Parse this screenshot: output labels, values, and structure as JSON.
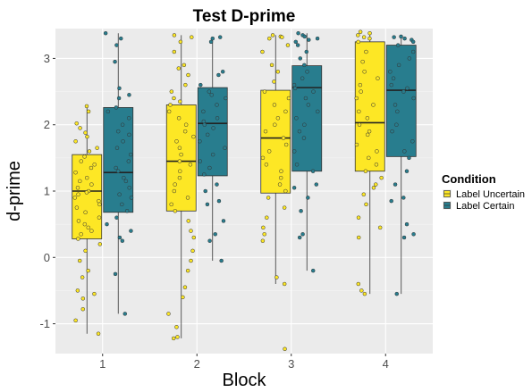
{
  "chart_data": {
    "type": "box",
    "title": "Test D-prime",
    "xlabel": "Block",
    "ylabel": "d-prime",
    "categories": [
      "1",
      "2",
      "3",
      "4"
    ],
    "ylim": [
      -1.45,
      3.45
    ],
    "yticks": [
      -1,
      0,
      1,
      2,
      3
    ],
    "grid": true,
    "legend": {
      "title": "Condition",
      "position": "right"
    },
    "series": [
      {
        "name": "Label Uncertain",
        "color": "#FDE725",
        "boxes": [
          {
            "min": -1.15,
            "q1": 0.28,
            "median": 1.0,
            "q3": 1.55,
            "max": 2.3
          },
          {
            "min": -1.22,
            "q1": 0.7,
            "median": 1.45,
            "q3": 2.3,
            "max": 3.35
          },
          {
            "min": -0.4,
            "q1": 0.97,
            "median": 1.8,
            "q3": 2.52,
            "max": 3.35
          },
          {
            "min": -0.55,
            "q1": 1.3,
            "median": 2.03,
            "q3": 3.25,
            "max": 3.4
          }
        ],
        "points": [
          [
            2.28,
            2.2,
            2.02,
            1.95,
            1.88,
            1.82,
            1.75,
            1.65,
            1.6,
            1.52,
            1.45,
            1.4,
            1.35,
            1.28,
            1.2,
            1.15,
            1.1,
            1.05,
            1.0,
            0.98,
            0.95,
            0.9,
            0.85,
            0.8,
            0.75,
            0.68,
            0.6,
            0.55,
            0.5,
            0.45,
            0.4,
            0.35,
            0.28,
            0.2,
            0.1,
            -0.05,
            -0.2,
            -0.3,
            -0.5,
            -0.55,
            -0.62,
            -0.78,
            -0.95,
            -1.15
          ],
          [
            3.35,
            3.32,
            3.25,
            3.1,
            2.9,
            2.85,
            2.75,
            2.6,
            2.5,
            2.4,
            2.35,
            2.3,
            2.2,
            2.1,
            2.0,
            1.9,
            1.82,
            1.75,
            1.65,
            1.55,
            1.45,
            1.4,
            1.3,
            1.2,
            1.1,
            1.0,
            0.9,
            0.8,
            0.7,
            0.55,
            0.4,
            0.3,
            0.1,
            -0.05,
            -0.2,
            -0.45,
            -0.6,
            -0.85,
            -1.05,
            -1.2,
            -1.22
          ],
          [
            3.35,
            3.33,
            3.32,
            3.3,
            3.2,
            3.1,
            2.9,
            2.8,
            2.65,
            2.5,
            2.4,
            2.3,
            2.2,
            2.1,
            2.0,
            1.9,
            1.8,
            1.7,
            1.6,
            1.5,
            1.4,
            1.3,
            1.2,
            1.1,
            1.0,
            0.9,
            0.75,
            0.6,
            0.45,
            0.35,
            0.25,
            -0.3,
            -0.4,
            -1.38
          ],
          [
            3.4,
            3.38,
            3.35,
            3.32,
            3.3,
            3.25,
            3.1,
            2.95,
            2.8,
            2.7,
            2.6,
            2.5,
            2.4,
            2.3,
            2.2,
            2.1,
            2.0,
            1.9,
            1.85,
            1.7,
            1.6,
            1.5,
            1.4,
            1.3,
            1.2,
            1.1,
            1.05,
            0.95,
            0.8,
            0.6,
            0.45,
            0.3,
            -0.4,
            -0.5,
            -0.55
          ]
        ]
      },
      {
        "name": "Label Certain",
        "color": "#287D8E",
        "boxes": [
          {
            "min": -0.85,
            "q1": 0.68,
            "median": 1.28,
            "q3": 2.26,
            "max": 3.38
          },
          {
            "min": -0.05,
            "q1": 1.23,
            "median": 2.02,
            "q3": 2.56,
            "max": 3.32
          },
          {
            "min": -0.2,
            "q1": 1.3,
            "median": 2.56,
            "q3": 2.89,
            "max": 3.38
          },
          {
            "min": -0.55,
            "q1": 1.52,
            "median": 2.52,
            "q3": 3.2,
            "max": 3.33
          }
        ],
        "points": [
          [
            3.38,
            3.3,
            3.2,
            2.95,
            2.55,
            2.45,
            2.4,
            2.26,
            2.2,
            2.1,
            2.0,
            1.9,
            1.85,
            1.75,
            1.65,
            1.55,
            1.45,
            1.35,
            1.3,
            1.2,
            1.15,
            1.05,
            0.95,
            0.9,
            0.8,
            0.7,
            0.6,
            0.5,
            0.4,
            0.3,
            0.25,
            -0.25,
            -0.85
          ],
          [
            3.32,
            3.3,
            3.25,
            2.8,
            2.75,
            2.6,
            2.5,
            2.45,
            2.4,
            2.3,
            2.2,
            2.1,
            2.05,
            2.0,
            1.95,
            1.85,
            1.75,
            1.65,
            1.55,
            1.45,
            1.35,
            1.25,
            1.1,
            1.0,
            0.85,
            0.8,
            0.55,
            0.35,
            0.25,
            -0.05
          ],
          [
            3.38,
            3.35,
            3.33,
            3.3,
            3.28,
            3.25,
            3.2,
            3.1,
            3.0,
            2.9,
            2.8,
            2.7,
            2.6,
            2.55,
            2.5,
            2.4,
            2.3,
            2.2,
            2.1,
            2.0,
            1.9,
            1.8,
            1.6,
            1.4,
            1.3,
            1.1,
            1.05,
            0.9,
            0.7,
            0.35,
            0.3,
            -0.2
          ],
          [
            3.33,
            3.32,
            3.3,
            3.28,
            3.25,
            3.2,
            3.1,
            3.0,
            2.9,
            2.8,
            2.7,
            2.6,
            2.55,
            2.5,
            2.4,
            2.3,
            2.2,
            2.0,
            1.9,
            1.75,
            1.6,
            1.5,
            1.3,
            1.1,
            0.9,
            0.85,
            0.5,
            0.35,
            0.3,
            -0.55
          ]
        ]
      }
    ]
  }
}
